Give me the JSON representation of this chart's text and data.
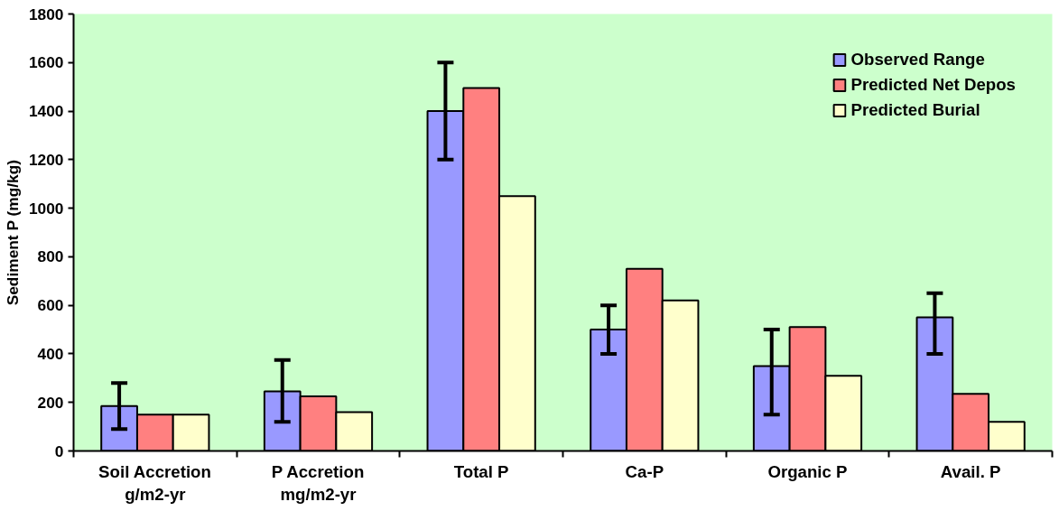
{
  "chart_data": {
    "type": "bar",
    "ylabel": "Sediment P (mg/kg)",
    "categories": [
      "Soil Accretion\ng/m2-yr",
      "P Accretion\nmg/m2-yr",
      "Total P",
      "Ca-P",
      "Organic P",
      "Avail. P"
    ],
    "series": [
      {
        "name": "Observed Range",
        "color": "#9999ff",
        "values": [
          185,
          245,
          1400,
          500,
          350,
          550
        ],
        "errors": [
          [
            90,
            280
          ],
          [
            120,
            375
          ],
          [
            1200,
            1600
          ],
          [
            400,
            600
          ],
          [
            150,
            500
          ],
          [
            400,
            650
          ]
        ]
      },
      {
        "name": "Predicted Net Depos",
        "color": "#ff8080",
        "values": [
          150,
          225,
          1495,
          750,
          510,
          235
        ]
      },
      {
        "name": "Predicted Burial",
        "color": "#ffffcc",
        "values": [
          150,
          160,
          1050,
          620,
          310,
          120
        ]
      }
    ],
    "ylim": [
      0,
      1800
    ],
    "yticks": [
      0,
      200,
      400,
      600,
      800,
      1000,
      1200,
      1400,
      1600,
      1800
    ],
    "grid": false,
    "legend": "top right"
  }
}
